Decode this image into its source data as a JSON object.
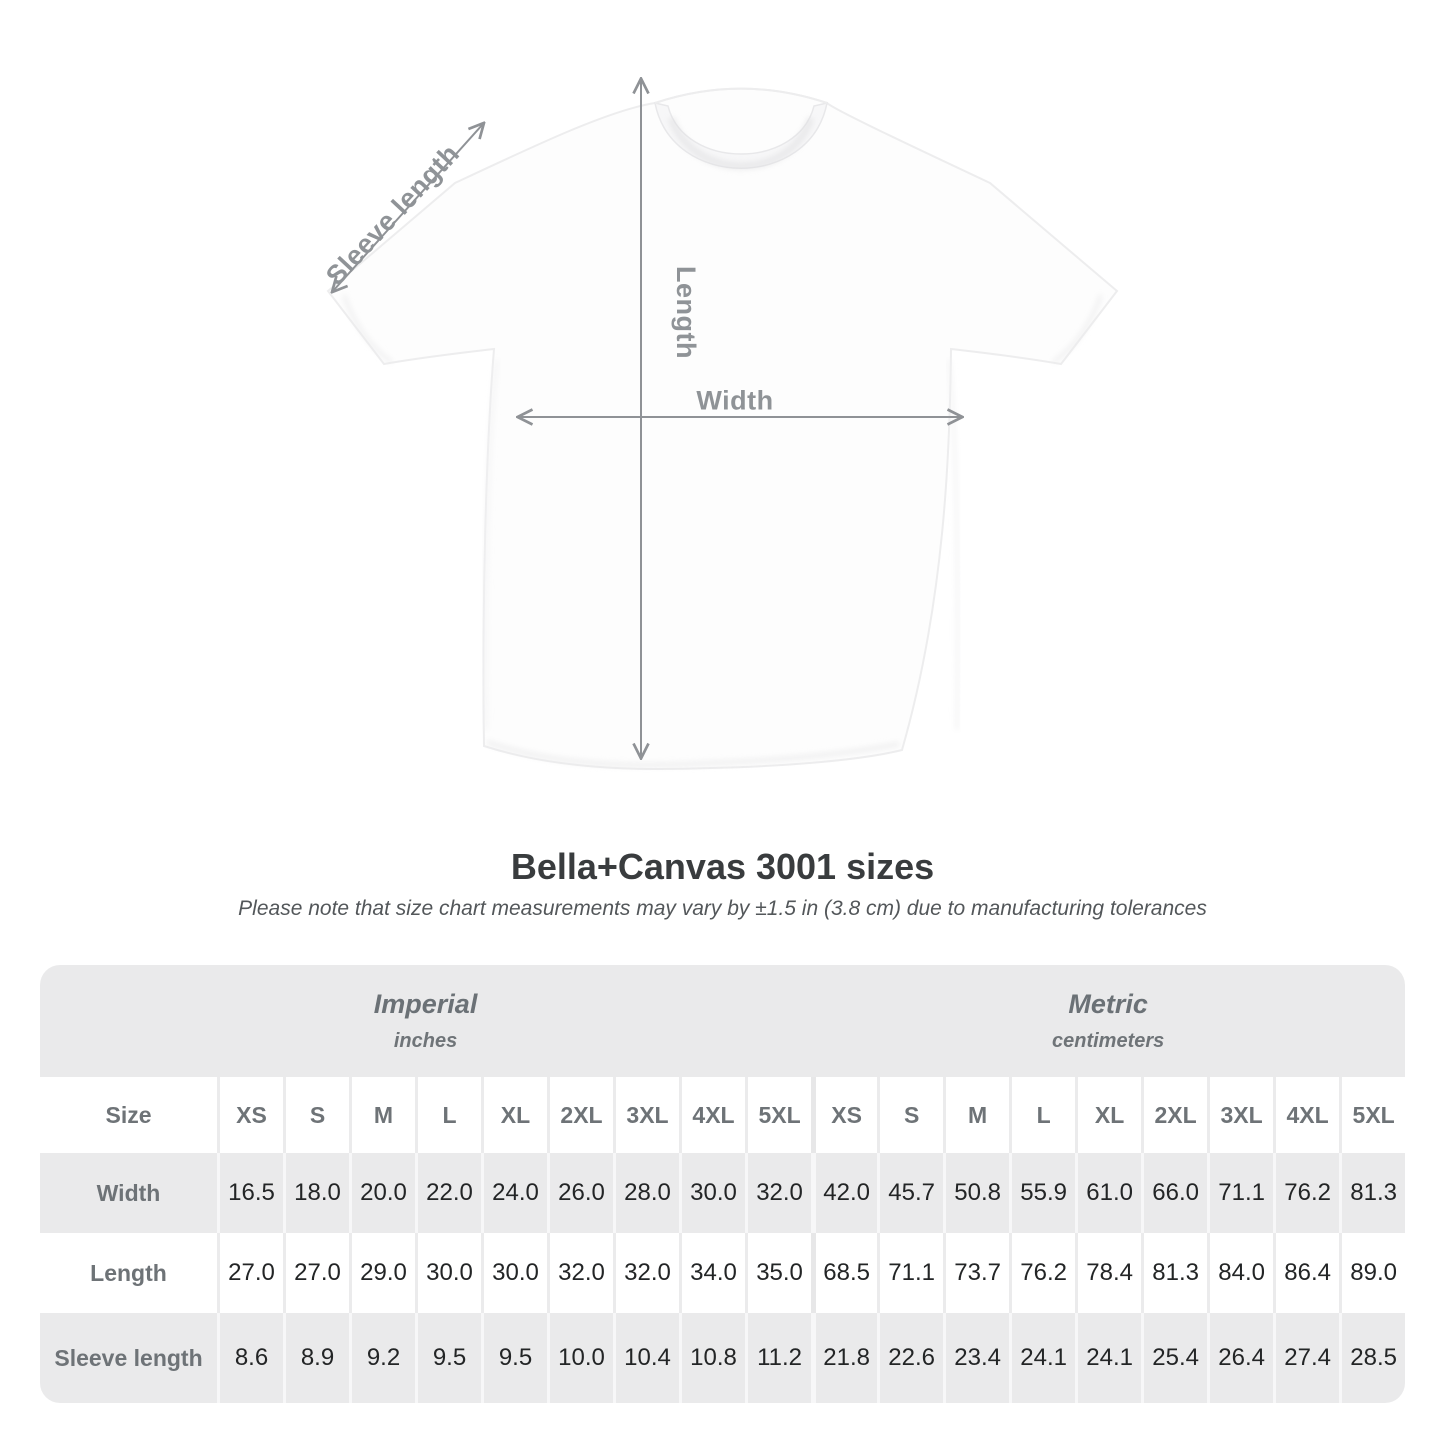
{
  "title": "Bella+Canvas 3001 sizes",
  "subtitle": "Please note that size chart measurements may vary by ±1.5 in (3.8 cm) due to manufacturing tolerances",
  "diagram": {
    "labels": {
      "sleeve": "Sleeve length",
      "length": "Length",
      "width": "Width"
    }
  },
  "size_chart": {
    "size_header_label": "Size",
    "unit_groups": [
      {
        "name": "Imperial",
        "unit": "inches"
      },
      {
        "name": "Metric",
        "unit": "centimeters"
      }
    ],
    "sizes": [
      "XS",
      "S",
      "M",
      "L",
      "XL",
      "2XL",
      "3XL",
      "4XL",
      "5XL"
    ],
    "rows": [
      {
        "label": "Width",
        "imperial": [
          "16.5",
          "18.0",
          "20.0",
          "22.0",
          "24.0",
          "26.0",
          "28.0",
          "30.0",
          "32.0"
        ],
        "metric": [
          "42.0",
          "45.7",
          "50.8",
          "55.9",
          "61.0",
          "66.0",
          "71.1",
          "76.2",
          "81.3"
        ]
      },
      {
        "label": "Length",
        "imperial": [
          "27.0",
          "27.0",
          "29.0",
          "30.0",
          "30.0",
          "32.0",
          "32.0",
          "34.0",
          "35.0"
        ],
        "metric": [
          "68.5",
          "71.1",
          "73.7",
          "76.2",
          "78.4",
          "81.3",
          "84.0",
          "86.4",
          "89.0"
        ]
      },
      {
        "label": "Sleeve length",
        "imperial": [
          "8.6",
          "8.9",
          "9.2",
          "9.5",
          "9.5",
          "10.0",
          "10.4",
          "10.8",
          "11.2"
        ],
        "metric": [
          "21.8",
          "22.6",
          "23.4",
          "24.1",
          "24.1",
          "25.4",
          "26.4",
          "27.4",
          "28.5"
        ]
      }
    ]
  },
  "chart_data": {
    "type": "table",
    "title": "Bella+Canvas 3001 sizes",
    "note": "Measurements may vary by ±1.5 in (3.8 cm)",
    "columns_imperial_inches": [
      "XS",
      "S",
      "M",
      "L",
      "XL",
      "2XL",
      "3XL",
      "4XL",
      "5XL"
    ],
    "columns_metric_centimeters": [
      "XS",
      "S",
      "M",
      "L",
      "XL",
      "2XL",
      "3XL",
      "4XL",
      "5XL"
    ],
    "width_in": [
      16.5,
      18.0,
      20.0,
      22.0,
      24.0,
      26.0,
      28.0,
      30.0,
      32.0
    ],
    "length_in": [
      27.0,
      27.0,
      29.0,
      30.0,
      30.0,
      32.0,
      32.0,
      34.0,
      35.0
    ],
    "sleeve_length_in": [
      8.6,
      8.9,
      9.2,
      9.5,
      9.5,
      10.0,
      10.4,
      10.8,
      11.2
    ],
    "width_cm": [
      42.0,
      45.7,
      50.8,
      55.9,
      61.0,
      66.0,
      71.1,
      76.2,
      81.3
    ],
    "length_cm": [
      68.5,
      71.1,
      73.7,
      76.2,
      78.4,
      81.3,
      84.0,
      86.4,
      89.0
    ],
    "sleeve_length_cm": [
      21.8,
      22.6,
      23.4,
      24.1,
      24.1,
      25.4,
      26.4,
      27.4,
      28.5
    ]
  },
  "colors": {
    "panel_gray": "#eaeaeb",
    "row_white": "#ffffff",
    "header_text": "#6b7176",
    "value_text": "#232526",
    "title_text": "#393c3e",
    "subtitle_text": "#53575a",
    "arrow_gray": "#8f9296",
    "diagram_label_gray": "#8f9397"
  }
}
